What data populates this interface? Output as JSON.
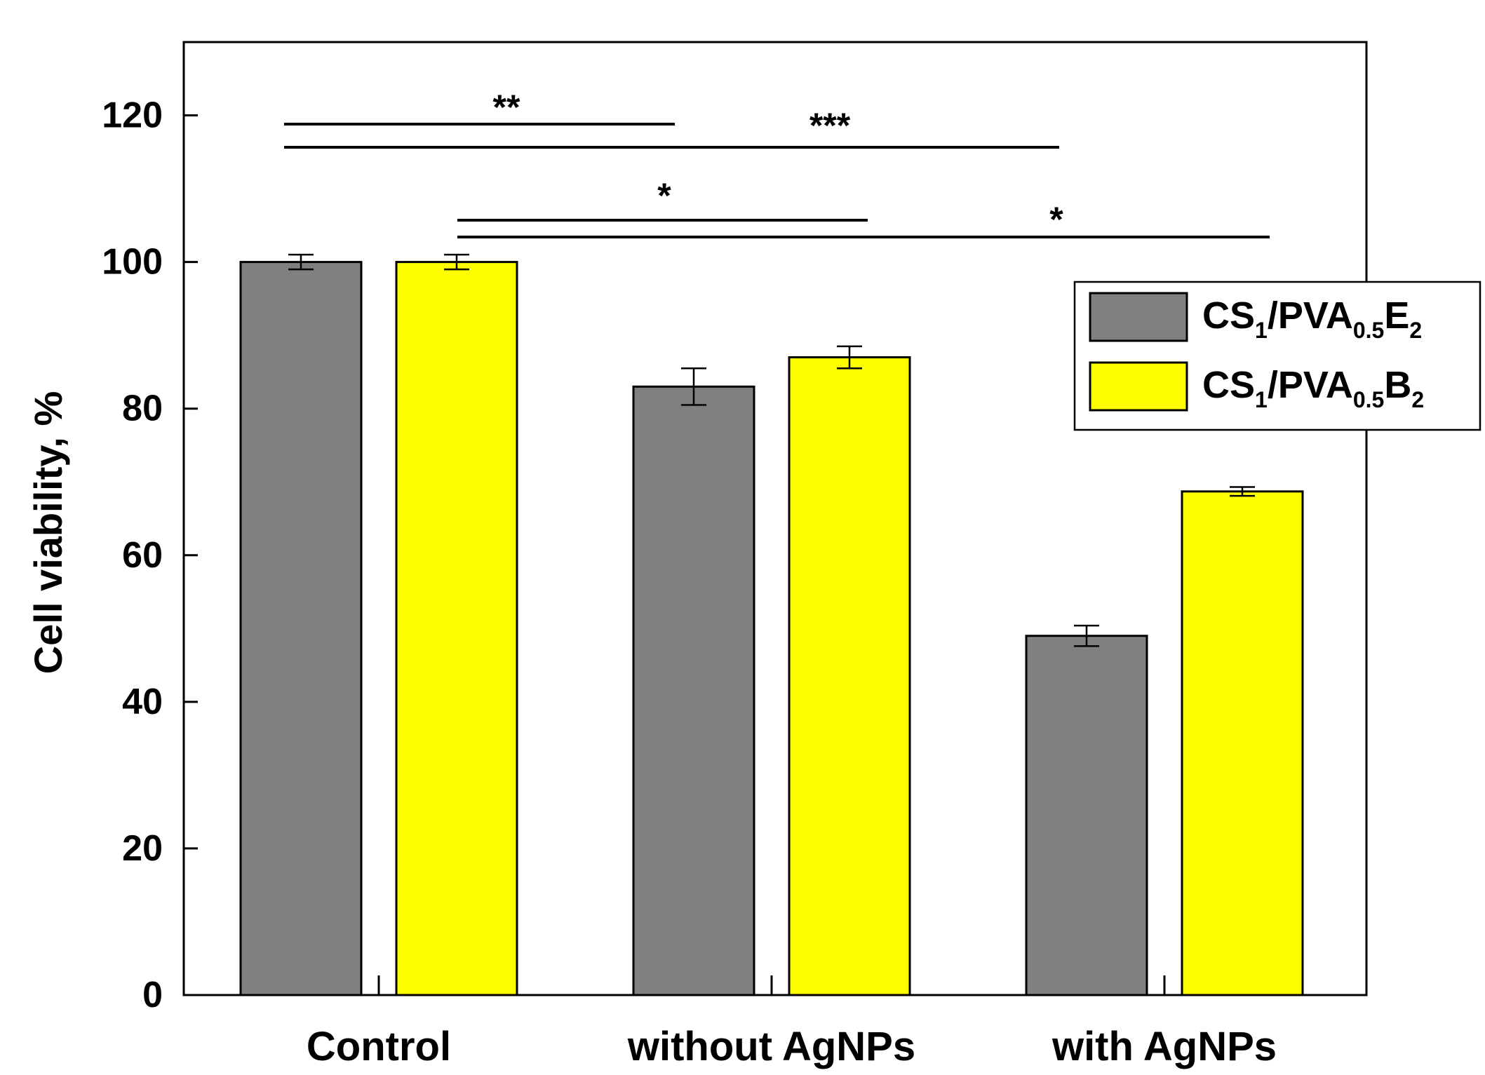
{
  "chart_data": {
    "type": "bar",
    "title": "",
    "xlabel": "",
    "ylabel": "Cell viability, %",
    "ylim": [
      0,
      130
    ],
    "yticks": [
      0,
      20,
      40,
      60,
      80,
      100,
      120
    ],
    "categories": [
      "Control",
      "without AgNPs",
      "with AgNPs"
    ],
    "series": [
      {
        "name": "CS1/PVA0.5E2",
        "label_parts": {
          "a": "CS",
          "a_sub": "1",
          "b": "/PVA",
          "b_sub": "0.5",
          "c": "E",
          "c_sub": "2"
        },
        "color": "#808080",
        "values": [
          100,
          83,
          49
        ],
        "errors": [
          1.0,
          2.5,
          1.4
        ]
      },
      {
        "name": "CS1/PVA0.5B2",
        "label_parts": {
          "a": "CS",
          "a_sub": "1",
          "b": "/PVA",
          "b_sub": "0.5",
          "c": "B",
          "c_sub": "2"
        },
        "color": "#ffff00",
        "values": [
          100,
          87,
          68.7
        ],
        "errors": [
          1.0,
          1.5,
          0.6
        ]
      }
    ],
    "legend_position": "top-right",
    "significance": [
      {
        "from": "Control / CS1/PVA0.5E2",
        "to": "without AgNPs / CS1/PVA0.5E2",
        "label": "**"
      },
      {
        "from": "Control / CS1/PVA0.5E2",
        "to": "with AgNPs / CS1/PVA0.5E2",
        "label": "***"
      },
      {
        "from": "Control / CS1/PVA0.5B2",
        "to": "without AgNPs / CS1/PVA0.5B2",
        "label": "*"
      },
      {
        "from": "Control / CS1/PVA0.5B2",
        "to": "with AgNPs / CS1/PVA0.5B2",
        "label": "*"
      }
    ]
  }
}
